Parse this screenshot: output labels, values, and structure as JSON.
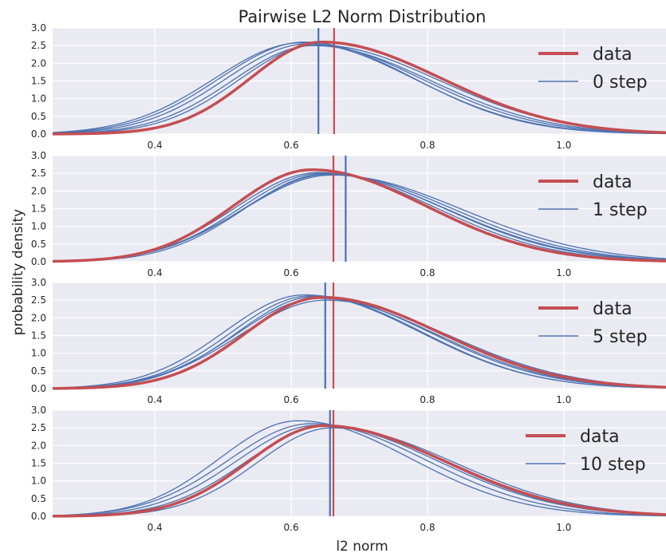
{
  "chart_data": {
    "type": "line",
    "title": "Pairwise L2 Norm Distribution",
    "xlabel": "l2 norm",
    "ylabel": "probability density",
    "xlim": [
      0.25,
      1.15
    ],
    "ylim": [
      0,
      3.0
    ],
    "xticks": [
      "0.4",
      "0.6",
      "0.8",
      "1.0"
    ],
    "yticks": [
      "0.0",
      "0.5",
      "1.0",
      "1.5",
      "2.0",
      "2.5",
      "3.0"
    ],
    "grid": true,
    "legend_placement": "top-right",
    "colors": {
      "data": "#c44e52",
      "model": "#4c72b0",
      "background": "#eaeaf2",
      "grid": "#ffffff"
    },
    "panels": [
      {
        "legend": [
          "data",
          "0 step"
        ],
        "data_curve": {
          "mode": 0.645,
          "peak": 2.6,
          "sl": 0.105,
          "sr": 0.175
        },
        "data_mean_line": 0.663,
        "model_mean_line": 0.64,
        "model_curves": [
          {
            "mode": 0.625,
            "peak": 2.55,
            "sl": 0.122,
            "sr": 0.168
          },
          {
            "mode": 0.615,
            "peak": 2.58,
            "sl": 0.128,
            "sr": 0.165
          },
          {
            "mode": 0.632,
            "peak": 2.5,
            "sl": 0.118,
            "sr": 0.172
          },
          {
            "mode": 0.62,
            "peak": 2.6,
            "sl": 0.125,
            "sr": 0.16
          },
          {
            "mode": 0.638,
            "peak": 2.52,
            "sl": 0.115,
            "sr": 0.178
          }
        ]
      },
      {
        "legend": [
          "data",
          "1 step"
        ],
        "data_curve": {
          "mode": 0.63,
          "peak": 2.6,
          "sl": 0.115,
          "sr": 0.168
        },
        "data_mean_line": 0.662,
        "model_mean_line": 0.68,
        "model_curves": [
          {
            "mode": 0.66,
            "peak": 2.45,
            "sl": 0.13,
            "sr": 0.19
          },
          {
            "mode": 0.645,
            "peak": 2.5,
            "sl": 0.12,
            "sr": 0.18
          },
          {
            "mode": 0.65,
            "peak": 2.48,
            "sl": 0.118,
            "sr": 0.175
          },
          {
            "mode": 0.64,
            "peak": 2.52,
            "sl": 0.122,
            "sr": 0.172
          },
          {
            "mode": 0.655,
            "peak": 2.47,
            "sl": 0.125,
            "sr": 0.182
          }
        ]
      },
      {
        "legend": [
          "data",
          "5 step"
        ],
        "data_curve": {
          "mode": 0.645,
          "peak": 2.58,
          "sl": 0.112,
          "sr": 0.175
        },
        "data_mean_line": 0.662,
        "model_mean_line": 0.65,
        "model_curves": [
          {
            "mode": 0.62,
            "peak": 2.65,
            "sl": 0.118,
            "sr": 0.168
          },
          {
            "mode": 0.635,
            "peak": 2.6,
            "sl": 0.115,
            "sr": 0.17
          },
          {
            "mode": 0.65,
            "peak": 2.5,
            "sl": 0.125,
            "sr": 0.18
          },
          {
            "mode": 0.64,
            "peak": 2.55,
            "sl": 0.12,
            "sr": 0.172
          },
          {
            "mode": 0.628,
            "peak": 2.62,
            "sl": 0.116,
            "sr": 0.165
          }
        ]
      },
      {
        "legend": [
          "data",
          "10 step"
        ],
        "data_curve": {
          "mode": 0.648,
          "peak": 2.56,
          "sl": 0.11,
          "sr": 0.178
        },
        "data_mean_line": 0.662,
        "model_mean_line": 0.657,
        "model_curves": [
          {
            "mode": 0.61,
            "peak": 2.7,
            "sl": 0.115,
            "sr": 0.165
          },
          {
            "mode": 0.64,
            "peak": 2.58,
            "sl": 0.12,
            "sr": 0.175
          },
          {
            "mode": 0.66,
            "peak": 2.5,
            "sl": 0.11,
            "sr": 0.18
          },
          {
            "mode": 0.652,
            "peak": 2.55,
            "sl": 0.118,
            "sr": 0.172
          },
          {
            "mode": 0.63,
            "peak": 2.62,
            "sl": 0.122,
            "sr": 0.168
          }
        ]
      }
    ]
  }
}
